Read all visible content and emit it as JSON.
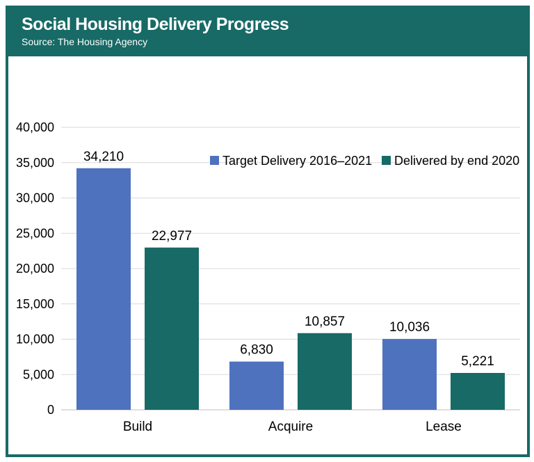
{
  "header": {
    "title": "Social Housing Delivery Progress",
    "source": "Source: The Housing Agency"
  },
  "colors": {
    "frame": "#176a66",
    "target": "#4f72bf",
    "delivered": "#176a66",
    "grid": "#d9d9d9"
  },
  "chart_data": {
    "type": "bar",
    "title": "",
    "xlabel": "",
    "ylabel": "",
    "categories": [
      "Build",
      "Acquire",
      "Lease"
    ],
    "series": [
      {
        "name": "Target Delivery 2016–2021",
        "values": [
          34210,
          6830,
          10036
        ],
        "labels": [
          "34,210",
          "6,830",
          "10,036"
        ]
      },
      {
        "name": "Delivered by end 2020",
        "values": [
          22977,
          10857,
          5221
        ],
        "labels": [
          "22,977",
          "10,857",
          "5,221"
        ]
      }
    ],
    "ylim": [
      0,
      40000
    ],
    "yticks": [
      0,
      5000,
      10000,
      15000,
      20000,
      25000,
      30000,
      35000,
      40000
    ],
    "ytick_labels": [
      "0",
      "5,000",
      "10,000",
      "15,000",
      "20,000",
      "25,000",
      "30,000",
      "35,000",
      "40,000"
    ],
    "grid": true,
    "legend_position": "top-right"
  }
}
